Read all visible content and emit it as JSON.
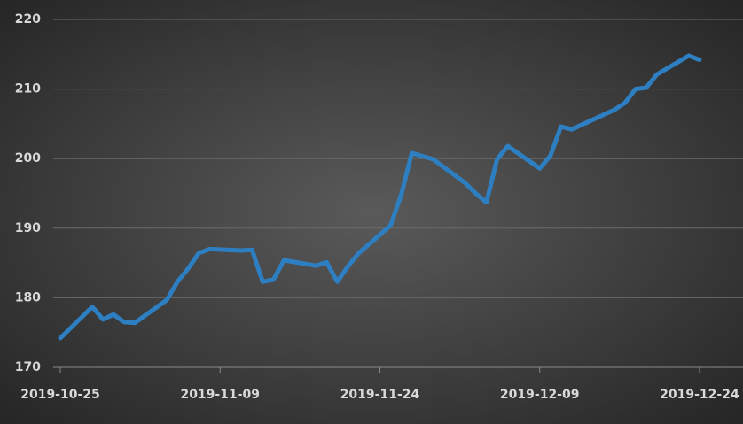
{
  "chart_data": {
    "type": "line",
    "x": [
      "2019-10-25",
      "2019-10-28",
      "2019-10-29",
      "2019-10-30",
      "2019-10-31",
      "2019-11-01",
      "2019-11-04",
      "2019-11-05",
      "2019-11-06",
      "2019-11-07",
      "2019-11-08",
      "2019-11-11",
      "2019-11-12",
      "2019-11-13",
      "2019-11-14",
      "2019-11-15",
      "2019-11-18",
      "2019-11-19",
      "2019-11-20",
      "2019-11-21",
      "2019-11-22",
      "2019-11-25",
      "2019-11-26",
      "2019-11-27",
      "2019-11-29",
      "2019-12-02",
      "2019-12-03",
      "2019-12-04",
      "2019-12-05",
      "2019-12-06",
      "2019-12-09",
      "2019-12-10",
      "2019-12-11",
      "2019-12-12",
      "2019-12-13",
      "2019-12-16",
      "2019-12-17",
      "2019-12-18",
      "2019-12-19",
      "2019-12-20",
      "2019-12-23",
      "2019-12-24"
    ],
    "values": [
      174.2,
      178.7,
      176.9,
      177.6,
      176.5,
      176.4,
      179.7,
      182.3,
      184.2,
      186.4,
      187.0,
      186.8,
      186.9,
      182.3,
      182.6,
      185.4,
      184.6,
      185.1,
      182.3,
      184.5,
      186.4,
      190.4,
      194.8,
      200.8,
      199.9,
      196.5,
      195.0,
      193.7,
      199.9,
      201.8,
      198.6,
      200.4,
      204.6,
      204.2,
      204.9,
      207.0,
      208.0,
      210.0,
      210.2,
      212.1,
      214.8,
      214.2
    ],
    "color": "#2e7fc1",
    "xlim": [
      "2019-10-24",
      "2019-12-28"
    ],
    "xticks": [
      "2019-10-25",
      "2019-11-09",
      "2019-11-24",
      "2019-12-09",
      "2019-12-24"
    ],
    "ylim": [
      170,
      220
    ],
    "yticks": [
      170,
      180,
      190,
      200,
      210,
      220
    ],
    "grid": true
  }
}
